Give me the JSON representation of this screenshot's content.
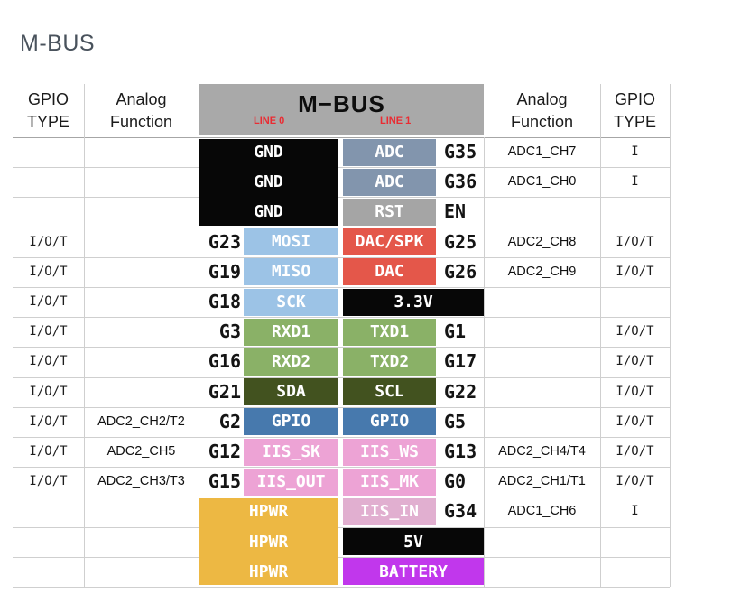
{
  "page": {
    "title": "M-BUS"
  },
  "colors": {
    "black": "#070707",
    "steel": "#8295ad",
    "gray": "#a5a5a5",
    "lightblue": "#9cc3e6",
    "red": "#e4574a",
    "green": "#8ab167",
    "darkgreen": "#42521f",
    "blue": "#4779ad",
    "pink": "#eda3d5",
    "lightpink": "#e1afd0",
    "orange": "#edb843",
    "magenta": "#c137ec",
    "bar_gray": "#a9a9a9",
    "accent_red": "#ea2b32",
    "title_color": "#49525c",
    "grid": "#cfcfcf",
    "grid_strong": "#a6a6a6"
  },
  "header": {
    "bus_title": "M−BUS",
    "line0": "LINE 0",
    "line1": "LINE 1",
    "gpio_line1": "GPIO",
    "gpio_line2": "TYPE",
    "analog_line1": "Analog",
    "analog_line2": "Function"
  },
  "table": {
    "merged_blocks": [
      {
        "name": "gnd-block",
        "side": "left",
        "color": "black",
        "row_start": 1,
        "row_end": 3
      },
      {
        "name": "hpwr-block",
        "side": "left",
        "color": "orange",
        "row_start": 13,
        "row_end": 15
      },
      {
        "name": "v33-block",
        "side": "right",
        "color": "black",
        "row_start": 6,
        "row_end": 6
      },
      {
        "name": "v5-block",
        "side": "right",
        "color": "black",
        "row_start": 14,
        "row_end": 14
      },
      {
        "name": "battery-block",
        "side": "right",
        "color": "magenta",
        "row_start": 15,
        "row_end": 15
      }
    ],
    "rows": [
      {
        "left_type": "",
        "left_analog": "",
        "left_pin": "",
        "left_label": {
          "text": "GND",
          "block": "left"
        },
        "right_label": {
          "text": "ADC",
          "color": "steel"
        },
        "right_pin": "G35",
        "right_analog": "ADC1_CH7",
        "right_type": "I"
      },
      {
        "left_type": "",
        "left_analog": "",
        "left_pin": "",
        "left_label": {
          "text": "GND",
          "block": "left"
        },
        "right_label": {
          "text": "ADC",
          "color": "steel"
        },
        "right_pin": "G36",
        "right_analog": "ADC1_CH0",
        "right_type": "I"
      },
      {
        "left_type": "",
        "left_analog": "",
        "left_pin": "",
        "left_label": {
          "text": "GND",
          "block": "left"
        },
        "right_label": {
          "text": "RST",
          "color": "gray"
        },
        "right_pin": "EN",
        "right_analog": "",
        "right_type": ""
      },
      {
        "left_type": "I/O/T",
        "left_analog": "",
        "left_pin": "G23",
        "left_label": {
          "text": "MOSI",
          "color": "lightblue"
        },
        "right_label": {
          "text": "DAC/SPK",
          "color": "red"
        },
        "right_pin": "G25",
        "right_analog": "ADC2_CH8",
        "right_type": "I/O/T"
      },
      {
        "left_type": "I/O/T",
        "left_analog": "",
        "left_pin": "G19",
        "left_label": {
          "text": "MISO",
          "color": "lightblue"
        },
        "right_label": {
          "text": "DAC",
          "color": "red"
        },
        "right_pin": "G26",
        "right_analog": "ADC2_CH9",
        "right_type": "I/O/T"
      },
      {
        "left_type": "I/O/T",
        "left_analog": "",
        "left_pin": "G18",
        "left_label": {
          "text": "SCK",
          "color": "lightblue"
        },
        "right_label": {
          "text": "3.3V",
          "block": "right"
        },
        "right_pin": "",
        "right_analog": "",
        "right_type": ""
      },
      {
        "left_type": "I/O/T",
        "left_analog": "",
        "left_pin": "G3",
        "left_label": {
          "text": "RXD1",
          "color": "green"
        },
        "right_label": {
          "text": "TXD1",
          "color": "green"
        },
        "right_pin": "G1",
        "right_analog": "",
        "right_type": "I/O/T"
      },
      {
        "left_type": "I/O/T",
        "left_analog": "",
        "left_pin": "G16",
        "left_label": {
          "text": "RXD2",
          "color": "green"
        },
        "right_label": {
          "text": "TXD2",
          "color": "green"
        },
        "right_pin": "G17",
        "right_analog": "",
        "right_type": "I/O/T"
      },
      {
        "left_type": "I/O/T",
        "left_analog": "",
        "left_pin": "G21",
        "left_label": {
          "text": "SDA",
          "color": "darkgreen"
        },
        "right_label": {
          "text": "SCL",
          "color": "darkgreen"
        },
        "right_pin": "G22",
        "right_analog": "",
        "right_type": "I/O/T"
      },
      {
        "left_type": "I/O/T",
        "left_analog": "ADC2_CH2/T2",
        "left_pin": "G2",
        "left_label": {
          "text": "GPIO",
          "color": "blue"
        },
        "right_label": {
          "text": "GPIO",
          "color": "blue"
        },
        "right_pin": "G5",
        "right_analog": "",
        "right_type": "I/O/T"
      },
      {
        "left_type": "I/O/T",
        "left_analog": "ADC2_CH5",
        "left_pin": "G12",
        "left_label": {
          "text": "IIS_SK",
          "color": "pink"
        },
        "right_label": {
          "text": "IIS_WS",
          "color": "pink"
        },
        "right_pin": "G13",
        "right_analog": "ADC2_CH4/T4",
        "right_type": "I/O/T"
      },
      {
        "left_type": "I/O/T",
        "left_analog": "ADC2_CH3/T3",
        "left_pin": "G15",
        "left_label": {
          "text": "IIS_OUT",
          "color": "pink"
        },
        "right_label": {
          "text": "IIS_MK",
          "color": "pink"
        },
        "right_pin": "G0",
        "right_analog": "ADC2_CH1/T1",
        "right_type": "I/O/T"
      },
      {
        "left_type": "",
        "left_analog": "",
        "left_pin": "",
        "left_label": {
          "text": "HPWR",
          "block": "left"
        },
        "right_label": {
          "text": "IIS_IN",
          "color": "lightpink"
        },
        "right_pin": "G34",
        "right_analog": "ADC1_CH6",
        "right_type": "I"
      },
      {
        "left_type": "",
        "left_analog": "",
        "left_pin": "",
        "left_label": {
          "text": "HPWR",
          "block": "left"
        },
        "right_label": {
          "text": "5V",
          "block": "right"
        },
        "right_pin": "",
        "right_analog": "",
        "right_type": ""
      },
      {
        "left_type": "",
        "left_analog": "",
        "left_pin": "",
        "left_label": {
          "text": "HPWR",
          "block": "left"
        },
        "right_label": {
          "text": "BATTERY",
          "block": "right"
        },
        "right_pin": "",
        "right_analog": "",
        "right_type": ""
      }
    ]
  }
}
